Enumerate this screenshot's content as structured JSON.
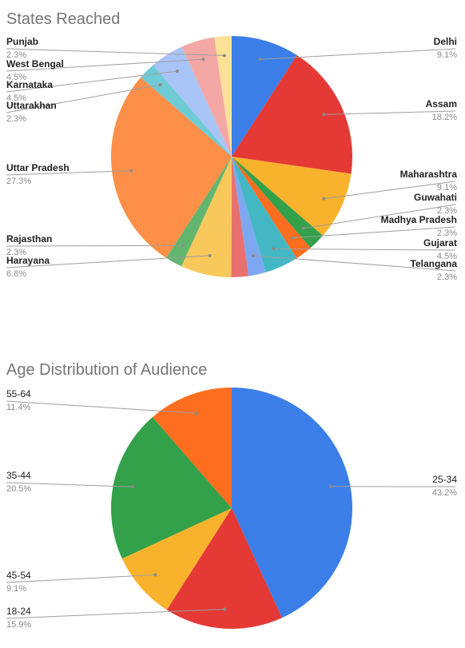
{
  "chart_data": [
    {
      "type": "pie",
      "title": "States Reached",
      "slices": [
        {
          "label": "Delhi",
          "pct_text": "9.1%",
          "value": 9.1,
          "color": "#3b7ee8"
        },
        {
          "label": "Assam",
          "pct_text": "18.2%",
          "value": 18.2,
          "color": "#e53935"
        },
        {
          "label": "Maharashtra",
          "pct_text": "9.1%",
          "value": 9.1,
          "color": "#f9b22b"
        },
        {
          "label": "Guwahati",
          "pct_text": "2.3%",
          "value": 2.3,
          "color": "#33a04a"
        },
        {
          "label": "Madhya Pradesh",
          "pct_text": "2.3%",
          "value": 2.3,
          "color": "#ff6d1f"
        },
        {
          "label": "Gujarat",
          "pct_text": "4.5%",
          "value": 4.5,
          "color": "#43b8c4"
        },
        {
          "label": "Telangana",
          "pct_text": "2.3%",
          "value": 2.3,
          "color": "#7ea7f2"
        },
        {
          "label": "",
          "pct_text": "",
          "value": 2.3,
          "color": "#e8716f"
        },
        {
          "label": "Harayana",
          "pct_text": "6.8%",
          "value": 6.8,
          "color": "#f9c85a"
        },
        {
          "label": "Rajasthan",
          "pct_text": "2.3%",
          "value": 2.3,
          "color": "#62b56f"
        },
        {
          "label": "Uttar Pradesh",
          "pct_text": "27.3%",
          "value": 27.3,
          "color": "#fd8f48"
        },
        {
          "label": "Uttarakhan",
          "pct_text": "2.3%",
          "value": 2.3,
          "color": "#6ecbd4"
        },
        {
          "label": "Karnataka",
          "pct_text": "4.5%",
          "value": 4.5,
          "color": "#a9c4f7"
        },
        {
          "label": "West Bengal",
          "pct_text": "4.5%",
          "value": 4.5,
          "color": "#f3a8a5"
        },
        {
          "label": "Punjab",
          "pct_text": "2.3%",
          "value": 2.3,
          "color": "#fde296"
        }
      ]
    },
    {
      "type": "pie",
      "title": "Age Distribution of Audience",
      "slices": [
        {
          "label": "25-34",
          "pct_text": "43.2%",
          "value": 43.2,
          "color": "#3b7ee8"
        },
        {
          "label": "18-24",
          "pct_text": "15.9%",
          "value": 15.9,
          "color": "#e53935"
        },
        {
          "label": "45-54",
          "pct_text": "9.1%",
          "value": 9.1,
          "color": "#f9b22b"
        },
        {
          "label": "35-44",
          "pct_text": "20.5%",
          "value": 20.5,
          "color": "#33a04a"
        },
        {
          "label": "55-64",
          "pct_text": "11.4%",
          "value": 11.4,
          "color": "#ff6d1f"
        }
      ]
    }
  ]
}
